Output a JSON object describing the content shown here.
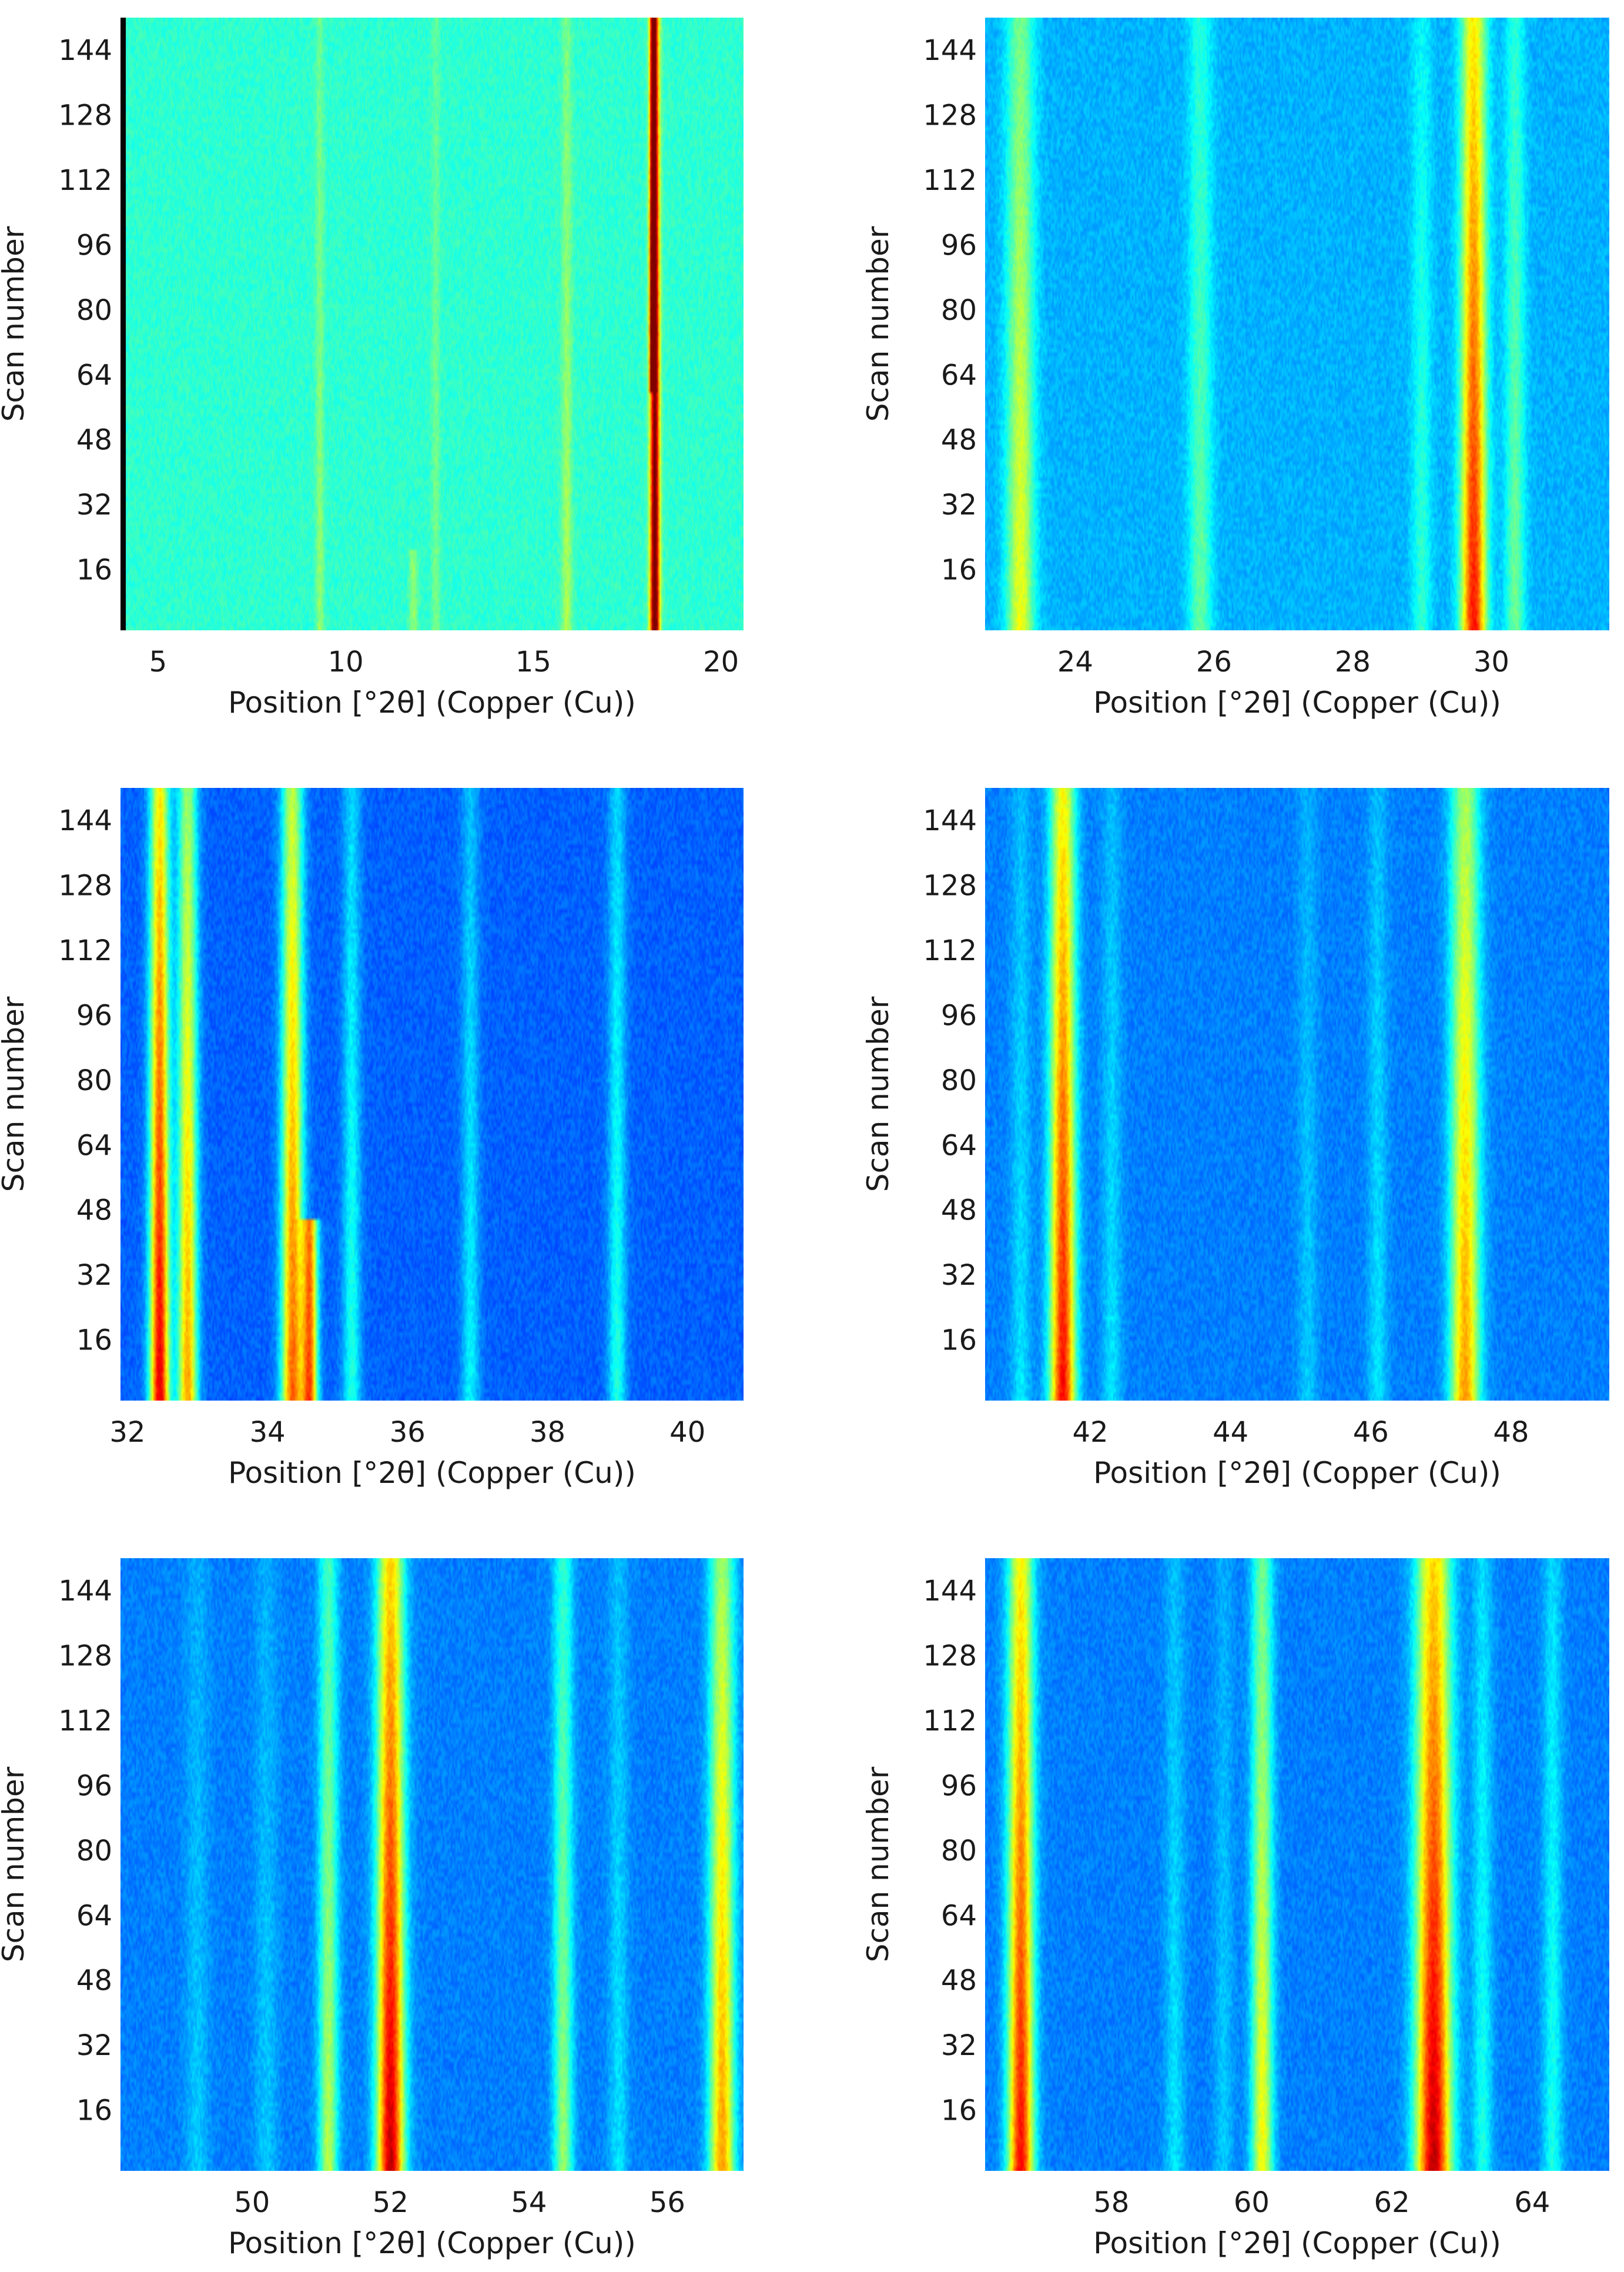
{
  "figure": {
    "ylabel": "Scan number",
    "xlabel": "Position [°2θ] (Copper (Cu))"
  },
  "chart_data": [
    {
      "type": "heatmap",
      "title": "",
      "xlabel": "Position [°2θ] (Copper (Cu))",
      "ylabel": "Scan number",
      "xlim": [
        4.0,
        20.6
      ],
      "ylim": [
        1,
        152
      ],
      "xticks": [
        5,
        10,
        15,
        20
      ],
      "yticks": [
        16,
        32,
        48,
        64,
        80,
        96,
        112,
        128,
        144
      ],
      "background_level": 0.42,
      "peaks": [
        {
          "position": 9.3,
          "width": 0.08,
          "intensity": 0.08
        },
        {
          "position": 11.8,
          "width": 0.08,
          "intensity": 0.08,
          "scan_range": [
            1,
            20
          ]
        },
        {
          "position": 12.4,
          "width": 0.08,
          "intensity": 0.06
        },
        {
          "position": 15.9,
          "width": 0.1,
          "intensity": 0.1
        },
        {
          "position": 18.25,
          "width": 0.09,
          "intensity": 0.55
        },
        {
          "position": 18.2,
          "width": 0.06,
          "intensity": 0.45,
          "scan_range": [
            60,
            152
          ]
        }
      ]
    },
    {
      "type": "heatmap",
      "title": "",
      "xlabel": "Position [°2θ] (Copper (Cu))",
      "ylabel": "Scan number",
      "xlim": [
        22.7,
        31.7
      ],
      "ylim": [
        1,
        152
      ],
      "xticks": [
        24,
        26,
        28,
        30
      ],
      "yticks": [
        16,
        32,
        48,
        64,
        80,
        96,
        112,
        128,
        144
      ],
      "background_level": 0.3,
      "peaks": [
        {
          "position": 23.2,
          "width": 0.14,
          "intensity": 0.25
        },
        {
          "position": 25.8,
          "width": 0.12,
          "intensity": 0.14
        },
        {
          "position": 29.0,
          "width": 0.1,
          "intensity": 0.1
        },
        {
          "position": 29.75,
          "width": 0.13,
          "intensity": 0.45
        },
        {
          "position": 30.35,
          "width": 0.1,
          "intensity": 0.15
        }
      ]
    },
    {
      "type": "heatmap",
      "title": "",
      "xlabel": "Position [°2θ] (Copper (Cu))",
      "ylabel": "Scan number",
      "xlim": [
        31.9,
        40.8
      ],
      "ylim": [
        1,
        152
      ],
      "xticks": [
        32,
        34,
        36,
        38,
        40
      ],
      "yticks": [
        16,
        32,
        48,
        64,
        80,
        96,
        112,
        128,
        144
      ],
      "background_level": 0.22,
      "peaks": [
        {
          "position": 32.45,
          "width": 0.1,
          "intensity": 0.55
        },
        {
          "position": 32.85,
          "width": 0.1,
          "intensity": 0.4
        },
        {
          "position": 34.35,
          "width": 0.11,
          "intensity": 0.45
        },
        {
          "position": 34.6,
          "width": 0.08,
          "intensity": 0.45,
          "scan_range": [
            1,
            45
          ]
        },
        {
          "position": 35.2,
          "width": 0.09,
          "intensity": 0.15
        },
        {
          "position": 36.9,
          "width": 0.09,
          "intensity": 0.12
        },
        {
          "position": 39.0,
          "width": 0.09,
          "intensity": 0.15
        }
      ]
    },
    {
      "type": "heatmap",
      "title": "",
      "xlabel": "Position [°2θ] (Copper (Cu))",
      "ylabel": "Scan number",
      "xlim": [
        40.5,
        49.4
      ],
      "ylim": [
        1,
        152
      ],
      "xticks": [
        42,
        44,
        46,
        48
      ],
      "yticks": [
        16,
        32,
        48,
        64,
        80,
        96,
        112,
        128,
        144
      ],
      "background_level": 0.25,
      "peaks": [
        {
          "position": 41.0,
          "width": 0.1,
          "intensity": 0.08
        },
        {
          "position": 41.6,
          "width": 0.13,
          "intensity": 0.5
        },
        {
          "position": 42.3,
          "width": 0.1,
          "intensity": 0.08
        },
        {
          "position": 45.1,
          "width": 0.1,
          "intensity": 0.06
        },
        {
          "position": 46.1,
          "width": 0.1,
          "intensity": 0.08
        },
        {
          "position": 47.35,
          "width": 0.15,
          "intensity": 0.38
        }
      ]
    },
    {
      "type": "heatmap",
      "title": "",
      "xlabel": "Position [°2θ] (Copper (Cu))",
      "ylabel": "Scan number",
      "xlim": [
        48.1,
        57.1
      ],
      "ylim": [
        1,
        152
      ],
      "xticks": [
        50,
        52,
        54,
        56
      ],
      "yticks": [
        16,
        32,
        48,
        64,
        80,
        96,
        112,
        128,
        144
      ],
      "background_level": 0.25,
      "peaks": [
        {
          "position": 49.2,
          "width": 0.12,
          "intensity": 0.06
        },
        {
          "position": 50.2,
          "width": 0.12,
          "intensity": 0.06
        },
        {
          "position": 51.1,
          "width": 0.1,
          "intensity": 0.25
        },
        {
          "position": 52.0,
          "width": 0.14,
          "intensity": 0.55
        },
        {
          "position": 54.5,
          "width": 0.1,
          "intensity": 0.22
        },
        {
          "position": 55.3,
          "width": 0.1,
          "intensity": 0.08
        },
        {
          "position": 56.8,
          "width": 0.13,
          "intensity": 0.38
        }
      ]
    },
    {
      "type": "heatmap",
      "title": "",
      "xlabel": "Position [°2θ] (Copper (Cu))",
      "ylabel": "Scan number",
      "xlim": [
        56.2,
        65.1
      ],
      "ylim": [
        1,
        152
      ],
      "xticks": [
        58,
        60,
        62,
        64
      ],
      "yticks": [
        16,
        32,
        48,
        64,
        80,
        96,
        112,
        128,
        144
      ],
      "background_level": 0.25,
      "peaks": [
        {
          "position": 56.7,
          "width": 0.13,
          "intensity": 0.5
        },
        {
          "position": 58.9,
          "width": 0.1,
          "intensity": 0.08
        },
        {
          "position": 59.6,
          "width": 0.1,
          "intensity": 0.06
        },
        {
          "position": 60.15,
          "width": 0.11,
          "intensity": 0.3
        },
        {
          "position": 62.6,
          "width": 0.18,
          "intensity": 0.55
        },
        {
          "position": 63.3,
          "width": 0.1,
          "intensity": 0.12
        },
        {
          "position": 64.3,
          "width": 0.1,
          "intensity": 0.12
        }
      ]
    }
  ]
}
